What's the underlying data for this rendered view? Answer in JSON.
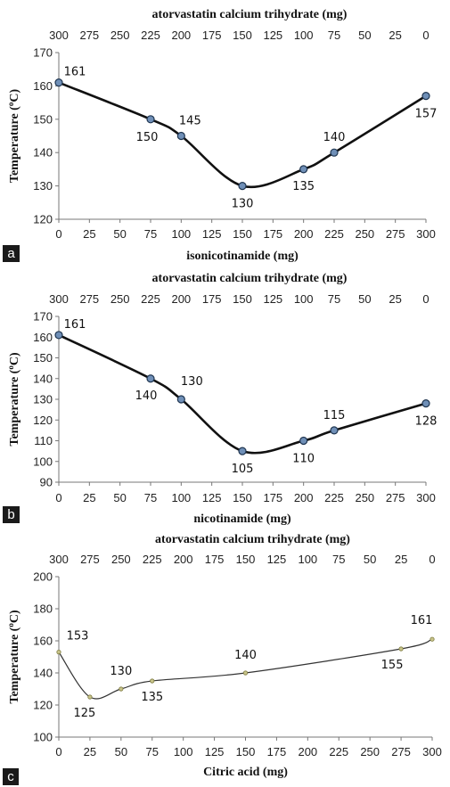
{
  "chart_data": [
    {
      "type": "line",
      "panel_label": "a",
      "top_axis_label": "atorvastatin calcium trihydrate (mg)",
      "top_ticks": [
        "300",
        "275",
        "250",
        "225",
        "200",
        "175",
        "150",
        "125",
        "100",
        "75",
        "50",
        "25",
        "0"
      ],
      "xlabel": "isonicotinamide (mg)",
      "ylabel": "Temperature (°C)",
      "x_ticks": [
        "0",
        "25",
        "50",
        "75",
        "100",
        "125",
        "150",
        "175",
        "200",
        "225",
        "250",
        "275",
        "300"
      ],
      "y_ticks": [
        "120",
        "130",
        "140",
        "150",
        "160",
        "170"
      ],
      "xlim": [
        0,
        300
      ],
      "ylim": [
        120,
        170
      ],
      "x": [
        0,
        75,
        100,
        150,
        200,
        225,
        300
      ],
      "y": [
        161,
        150,
        145,
        130,
        135,
        140,
        157
      ],
      "point_labels": [
        "161",
        "150",
        "145",
        "130",
        "135",
        "140",
        "157"
      ],
      "style": "bold",
      "colors": {
        "line": "#111111",
        "marker": "#6f8fb7",
        "marker_edge": "#1f3550"
      }
    },
    {
      "type": "line",
      "panel_label": "b",
      "top_axis_label": "atorvastatin calcium trihydrate (mg)",
      "top_ticks": [
        "300",
        "275",
        "250",
        "225",
        "200",
        "175",
        "150",
        "125",
        "100",
        "75",
        "50",
        "25",
        "0"
      ],
      "xlabel": "nicotinamide (mg)",
      "ylabel": "Temperature (°C)",
      "x_ticks": [
        "0",
        "25",
        "50",
        "75",
        "100",
        "125",
        "150",
        "175",
        "200",
        "225",
        "250",
        "275",
        "300"
      ],
      "y_ticks": [
        "90",
        "100",
        "110",
        "120",
        "130",
        "140",
        "150",
        "160",
        "170"
      ],
      "xlim": [
        0,
        300
      ],
      "ylim": [
        90,
        170
      ],
      "x": [
        0,
        75,
        100,
        150,
        200,
        225,
        300
      ],
      "y": [
        161,
        140,
        130,
        105,
        110,
        115,
        128
      ],
      "point_labels": [
        "161",
        "140",
        "130",
        "105",
        "110",
        "115",
        "128"
      ],
      "style": "bold",
      "colors": {
        "line": "#111111",
        "marker": "#6f8fb7",
        "marker_edge": "#1f3550"
      }
    },
    {
      "type": "line",
      "panel_label": "c",
      "top_axis_label": "atorvastatin calcium trihydrate (mg)",
      "top_ticks": [
        "300",
        "275",
        "250",
        "225",
        "200",
        "175",
        "150",
        "125",
        "100",
        "75",
        "50",
        "25",
        "0"
      ],
      "xlabel": "Citric acid (mg)",
      "ylabel": "Temperature (°C)",
      "x_ticks": [
        "0",
        "25",
        "50",
        "75",
        "100",
        "125",
        "150",
        "175",
        "200",
        "225",
        "250",
        "275",
        "300"
      ],
      "y_ticks": [
        "100",
        "120",
        "140",
        "160",
        "180",
        "200"
      ],
      "xlim": [
        0,
        300
      ],
      "ylim": [
        100,
        200
      ],
      "x": [
        0,
        25,
        50,
        75,
        150,
        275,
        300
      ],
      "y": [
        153,
        125,
        130,
        135,
        140,
        155,
        161
      ],
      "point_labels": [
        "153",
        "125",
        "130",
        "135",
        "140",
        "155",
        "161"
      ],
      "style": "thin",
      "colors": {
        "line": "#333333",
        "marker": "#c8c48a",
        "marker_edge": "#7d7a40"
      }
    }
  ]
}
